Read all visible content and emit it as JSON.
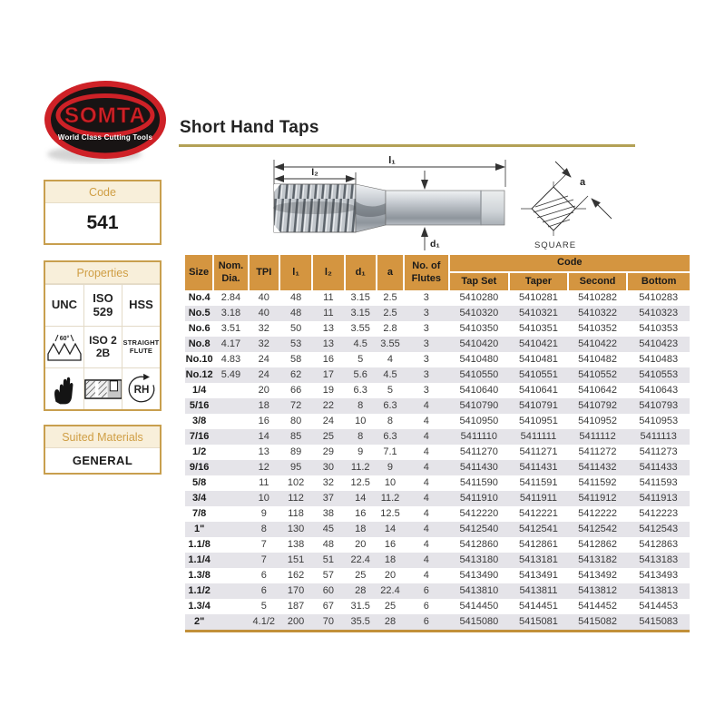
{
  "logo": {
    "brand": "SOMTA",
    "tagline": "World Class Cutting Tools"
  },
  "page": {
    "title": "Short Hand Taps"
  },
  "code_box": {
    "header": "Code",
    "value": "541"
  },
  "properties_box": {
    "header": "Properties",
    "row1": {
      "c1": "UNC",
      "c2_line1": "ISO",
      "c2_line2": "529",
      "c3": "HSS"
    },
    "row2": {
      "angle_label": "60°",
      "c2_line1": "ISO 2",
      "c2_line2": "2B",
      "c3_line1": "STRAIGHT",
      "c3_line2": "FLUTE"
    },
    "row3": {
      "rh_label": "RH"
    },
    "icons": [
      "thread-profile-icon",
      "glove-icon",
      "cross-section-icon",
      "rh-rotation-icon"
    ]
  },
  "materials_box": {
    "header": "Suited Materials",
    "value": "GENERAL"
  },
  "diagram": {
    "dim_l1": "l₁",
    "dim_l2": "l₂",
    "dim_d1": "d₁",
    "dim_a": "a",
    "square_label": "SQUARE"
  },
  "table": {
    "headers": {
      "size": "Size",
      "nom_dia": "Nom. Dia.",
      "tpi": "TPI",
      "l1": "l₁",
      "l2": "l₂",
      "d1": "d₁",
      "a": "a",
      "flutes": "No. of Flutes",
      "code": "Code"
    },
    "code_subheaders": [
      "Tap Set",
      "Taper",
      "Second",
      "Bottom"
    ],
    "rows": [
      [
        "No.4",
        "2.84",
        "40",
        "48",
        "11",
        "3.15",
        "2.5",
        "3",
        "5410280",
        "5410281",
        "5410282",
        "5410283"
      ],
      [
        "No.5",
        "3.18",
        "40",
        "48",
        "11",
        "3.15",
        "2.5",
        "3",
        "5410320",
        "5410321",
        "5410322",
        "5410323"
      ],
      [
        "No.6",
        "3.51",
        "32",
        "50",
        "13",
        "3.55",
        "2.8",
        "3",
        "5410350",
        "5410351",
        "5410352",
        "5410353"
      ],
      [
        "No.8",
        "4.17",
        "32",
        "53",
        "13",
        "4.5",
        "3.55",
        "3",
        "5410420",
        "5410421",
        "5410422",
        "5410423"
      ],
      [
        "No.10",
        "4.83",
        "24",
        "58",
        "16",
        "5",
        "4",
        "3",
        "5410480",
        "5410481",
        "5410482",
        "5410483"
      ],
      [
        "No.12",
        "5.49",
        "24",
        "62",
        "17",
        "5.6",
        "4.5",
        "3",
        "5410550",
        "5410551",
        "5410552",
        "5410553"
      ],
      [
        "1/4",
        "",
        "20",
        "66",
        "19",
        "6.3",
        "5",
        "3",
        "5410640",
        "5410641",
        "5410642",
        "5410643"
      ],
      [
        "5/16",
        "",
        "18",
        "72",
        "22",
        "8",
        "6.3",
        "4",
        "5410790",
        "5410791",
        "5410792",
        "5410793"
      ],
      [
        "3/8",
        "",
        "16",
        "80",
        "24",
        "10",
        "8",
        "4",
        "5410950",
        "5410951",
        "5410952",
        "5410953"
      ],
      [
        "7/16",
        "",
        "14",
        "85",
        "25",
        "8",
        "6.3",
        "4",
        "5411110",
        "5411111",
        "5411112",
        "5411113"
      ],
      [
        "1/2",
        "",
        "13",
        "89",
        "29",
        "9",
        "7.1",
        "4",
        "5411270",
        "5411271",
        "5411272",
        "5411273"
      ],
      [
        "9/16",
        "",
        "12",
        "95",
        "30",
        "11.2",
        "9",
        "4",
        "5411430",
        "5411431",
        "5411432",
        "5411433"
      ],
      [
        "5/8",
        "",
        "11",
        "102",
        "32",
        "12.5",
        "10",
        "4",
        "5411590",
        "5411591",
        "5411592",
        "5411593"
      ],
      [
        "3/4",
        "",
        "10",
        "112",
        "37",
        "14",
        "11.2",
        "4",
        "5411910",
        "5411911",
        "5411912",
        "5411913"
      ],
      [
        "7/8",
        "",
        "9",
        "118",
        "38",
        "16",
        "12.5",
        "4",
        "5412220",
        "5412221",
        "5412222",
        "5412223"
      ],
      [
        "1\"",
        "",
        "8",
        "130",
        "45",
        "18",
        "14",
        "4",
        "5412540",
        "5412541",
        "5412542",
        "5412543"
      ],
      [
        "1.1/8",
        "",
        "7",
        "138",
        "48",
        "20",
        "16",
        "4",
        "5412860",
        "5412861",
        "5412862",
        "5412863"
      ],
      [
        "1.1/4",
        "",
        "7",
        "151",
        "51",
        "22.4",
        "18",
        "4",
        "5413180",
        "5413181",
        "5413182",
        "5413183"
      ],
      [
        "1.3/8",
        "",
        "6",
        "162",
        "57",
        "25",
        "20",
        "4",
        "5413490",
        "5413491",
        "5413492",
        "5413493"
      ],
      [
        "1.1/2",
        "",
        "6",
        "170",
        "60",
        "28",
        "22.4",
        "6",
        "5413810",
        "5413811",
        "5413812",
        "5413813"
      ],
      [
        "1.3/4",
        "",
        "5",
        "187",
        "67",
        "31.5",
        "25",
        "6",
        "5414450",
        "5414451",
        "5414452",
        "5414453"
      ],
      [
        "2\"",
        "",
        "4.1/2",
        "200",
        "70",
        "35.5",
        "28",
        "6",
        "5415080",
        "5415081",
        "5415082",
        "5415083"
      ]
    ]
  },
  "colors": {
    "header_orange": "#d49540",
    "alt_row": "#e5e4e9",
    "gold_rule": "#b3a156",
    "box_border_gold": "#c89f4e",
    "accent_text": "#cf9e44",
    "logo_red": "#ce2127"
  }
}
